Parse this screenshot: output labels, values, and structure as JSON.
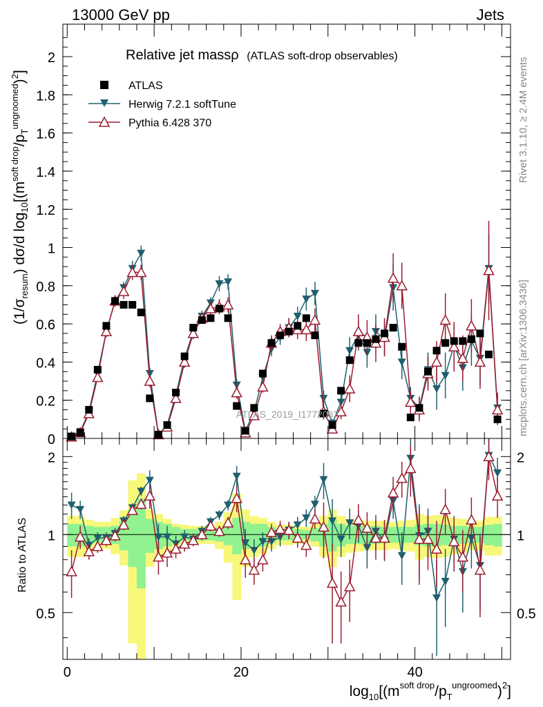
{
  "header": {
    "left": "13000 GeV pp",
    "right": "Jets"
  },
  "side_labels": {
    "rivet": "Rivet 3.1.10, ≥ 2.4M events",
    "mcplots": "mcplots.cern.ch [arXiv:1306.3436]"
  },
  "watermark": "ATLAS_2019_I1772062",
  "chart_data": {
    "type": "line",
    "title": "Relative jet massρ",
    "subtitle": "(ATLAS soft-drop observables)",
    "xlabel": "log10[(m^soft drop/pT^ungroomed)^2]",
    "xlabel_parts": {
      "log": "log",
      "sub": "10",
      "open": "[(m",
      "sup1": "soft drop",
      "mid": "/p",
      "sub2": "T",
      "sup2": "ungroomed",
      "close": ")",
      "pow": "2",
      "end": "]"
    },
    "ylabel_parts": {
      "a": "(1/σ",
      "b": "resum",
      "c": ") dσ/d log",
      "d": "10",
      "e": "[(m",
      "f": "soft drop",
      "g": "/p",
      "h": "T",
      "i": "ungroomed",
      "j": ")",
      "k": "2",
      "l": "]"
    },
    "ratio_ylabel": "Ratio to ATLAS",
    "xlim": [
      -0.5,
      51
    ],
    "ylim": [
      0,
      2.17
    ],
    "ratio_ylim": [
      0.33,
      2.35
    ],
    "x_ticks": [
      0,
      20,
      40
    ],
    "y_ticks": [
      0,
      0.2,
      0.4,
      0.6,
      0.8,
      1,
      1.2,
      1.4,
      1.6,
      1.8,
      2
    ],
    "y_tick_labels": [
      "0",
      "0.2",
      "0.4",
      "0.6",
      "0.8",
      "1",
      "1.2",
      "1.4",
      "1.6",
      "1.8",
      "2"
    ],
    "ratio_ticks": [
      0.5,
      1,
      2
    ],
    "ratio_tick_labels": [
      "0.5",
      "1",
      "2"
    ],
    "legend": [
      {
        "name": "ATLAS",
        "marker": "square",
        "color": "#000000"
      },
      {
        "name": "Herwig 7.2.1 softTune",
        "marker": "triangle-down",
        "color": "#1f5f6e"
      },
      {
        "name": "Pythia 6.428 370",
        "marker": "triangle-up-open",
        "color": "#9b1b30"
      }
    ],
    "x": [
      0.5,
      1.5,
      2.5,
      3.5,
      4.5,
      5.5,
      6.5,
      7.5,
      8.5,
      9.5,
      10.5,
      11.5,
      12.5,
      13.5,
      14.5,
      15.5,
      16.5,
      17.5,
      18.5,
      19.5,
      20.5,
      21.5,
      22.5,
      23.5,
      24.5,
      25.5,
      26.5,
      27.5,
      28.5,
      29.5,
      30.5,
      31.5,
      32.5,
      33.5,
      34.5,
      35.5,
      36.5,
      37.5,
      38.5,
      39.5,
      40.5,
      41.5,
      42.5,
      43.5,
      44.5,
      45.5,
      46.5,
      47.5,
      48.5,
      49.5
    ],
    "series": [
      {
        "name": "ATLAS",
        "values": [
          0.01,
          0.03,
          0.15,
          0.36,
          0.59,
          0.72,
          0.7,
          0.7,
          0.66,
          0.21,
          0.02,
          0.07,
          0.24,
          0.43,
          0.58,
          0.62,
          0.63,
          0.68,
          0.63,
          0.17,
          0.04,
          0.16,
          0.34,
          0.5,
          0.54,
          0.56,
          0.59,
          0.63,
          0.54,
          0.13,
          0.07,
          0.25,
          0.41,
          0.5,
          0.5,
          0.52,
          0.55,
          0.58,
          0.48,
          0.11,
          0.16,
          0.35,
          0.46,
          0.5,
          0.51,
          0.51,
          0.52,
          0.55,
          0.44,
          0.1
        ]
      },
      {
        "name": "Herwig 7.2.1 softTune",
        "values": [
          0.012,
          0.036,
          0.14,
          0.34,
          0.56,
          0.72,
          0.79,
          0.89,
          0.97,
          0.34,
          0.02,
          0.07,
          0.23,
          0.42,
          0.56,
          0.64,
          0.71,
          0.81,
          0.82,
          0.28,
          0.04,
          0.14,
          0.32,
          0.47,
          0.53,
          0.58,
          0.64,
          0.73,
          0.76,
          0.21,
          0.08,
          0.19,
          0.46,
          0.54,
          0.45,
          0.56,
          0.52,
          0.79,
          0.4,
          0.21,
          0.16,
          0.36,
          0.26,
          0.33,
          0.49,
          0.37,
          0.51,
          0.42,
          0.89,
          0.16
        ],
        "errors": [
          0.002,
          0.004,
          0.01,
          0.02,
          0.03,
          0.03,
          0.03,
          0.04,
          0.04,
          0.03,
          0.003,
          0.008,
          0.02,
          0.03,
          0.03,
          0.03,
          0.03,
          0.04,
          0.04,
          0.03,
          0.005,
          0.015,
          0.03,
          0.04,
          0.04,
          0.05,
          0.05,
          0.06,
          0.06,
          0.04,
          0.02,
          0.04,
          0.07,
          0.08,
          0.08,
          0.09,
          0.09,
          0.12,
          0.09,
          0.06,
          0.06,
          0.09,
          0.11,
          0.12,
          0.12,
          0.12,
          0.13,
          0.14,
          0.18,
          0.08
        ]
      },
      {
        "name": "Pythia 6.428 370",
        "values": [
          0.008,
          0.03,
          0.13,
          0.32,
          0.56,
          0.72,
          0.77,
          0.87,
          0.87,
          0.3,
          0.02,
          0.06,
          0.21,
          0.4,
          0.55,
          0.63,
          0.68,
          0.69,
          0.7,
          0.24,
          0.03,
          0.12,
          0.27,
          0.5,
          0.56,
          0.58,
          0.57,
          0.57,
          0.62,
          0.14,
          0.05,
          0.14,
          0.26,
          0.56,
          0.53,
          0.5,
          0.53,
          0.84,
          0.8,
          0.19,
          0.15,
          0.34,
          0.4,
          0.62,
          0.48,
          0.42,
          0.59,
          0.4,
          0.88,
          0.15
        ],
        "errors": [
          0.002,
          0.004,
          0.01,
          0.02,
          0.03,
          0.03,
          0.04,
          0.04,
          0.04,
          0.03,
          0.003,
          0.008,
          0.02,
          0.03,
          0.03,
          0.03,
          0.04,
          0.04,
          0.04,
          0.03,
          0.005,
          0.015,
          0.03,
          0.04,
          0.04,
          0.05,
          0.05,
          0.06,
          0.06,
          0.04,
          0.02,
          0.04,
          0.07,
          0.09,
          0.09,
          0.1,
          0.1,
          0.13,
          0.12,
          0.06,
          0.06,
          0.09,
          0.11,
          0.14,
          0.13,
          0.12,
          0.14,
          0.14,
          0.26,
          0.08
        ]
      }
    ],
    "ratio_series": [
      {
        "name": "Herwig 7.2.1 softTune",
        "values": [
          1.3,
          1.25,
          0.91,
          0.97,
          0.97,
          1.01,
          1.13,
          1.27,
          1.47,
          1.62,
          0.98,
          0.98,
          0.92,
          0.98,
          0.96,
          1.03,
          1.12,
          1.19,
          1.3,
          1.68,
          0.93,
          0.87,
          0.94,
          0.94,
          0.98,
          1.04,
          1.09,
          1.16,
          1.31,
          1.63,
          1.13,
          0.96,
          1.11,
          1.08,
          0.89,
          1.03,
          0.95,
          1.35,
          0.83,
          1.97,
          0.99,
          1.03,
          0.57,
          0.66,
          0.96,
          0.72,
          0.97,
          0.76,
          2.02,
          1.73
        ],
        "errors": [
          0.15,
          0.1,
          0.06,
          0.05,
          0.05,
          0.05,
          0.05,
          0.05,
          0.06,
          0.15,
          0.12,
          0.1,
          0.07,
          0.06,
          0.05,
          0.05,
          0.05,
          0.05,
          0.06,
          0.16,
          0.12,
          0.09,
          0.08,
          0.08,
          0.08,
          0.08,
          0.08,
          0.09,
          0.1,
          0.26,
          0.24,
          0.14,
          0.15,
          0.15,
          0.15,
          0.16,
          0.16,
          0.2,
          0.19,
          0.42,
          0.32,
          0.23,
          0.23,
          0.22,
          0.22,
          0.22,
          0.23,
          0.25,
          0.32,
          0.25
        ]
      },
      {
        "name": "Pythia 6.428 370",
        "values": [
          0.72,
          0.98,
          0.86,
          0.9,
          0.95,
          0.99,
          1.09,
          1.24,
          1.31,
          1.41,
          0.82,
          0.85,
          0.88,
          0.92,
          0.95,
          1.0,
          1.08,
          1.03,
          1.11,
          1.38,
          0.8,
          0.73,
          0.8,
          1.02,
          1.05,
          1.04,
          0.97,
          0.91,
          1.15,
          1.07,
          0.65,
          0.55,
          0.63,
          1.14,
          1.06,
          0.97,
          0.97,
          1.45,
          1.65,
          1.8,
          0.96,
          0.96,
          0.88,
          1.25,
          0.94,
          0.82,
          1.14,
          0.73,
          2.0,
          1.41
        ],
        "errors": [
          0.15,
          0.1,
          0.06,
          0.05,
          0.05,
          0.05,
          0.05,
          0.05,
          0.06,
          0.15,
          0.12,
          0.1,
          0.07,
          0.06,
          0.05,
          0.05,
          0.05,
          0.05,
          0.06,
          0.16,
          0.12,
          0.09,
          0.08,
          0.08,
          0.08,
          0.08,
          0.08,
          0.09,
          0.1,
          0.26,
          0.27,
          0.17,
          0.17,
          0.17,
          0.16,
          0.17,
          0.17,
          0.22,
          0.26,
          0.4,
          0.32,
          0.23,
          0.25,
          0.25,
          0.22,
          0.22,
          0.25,
          0.25,
          0.38,
          0.25
        ]
      }
    ],
    "uncertainty_band": {
      "green_halfwidth": [
        0.1,
        0.1,
        0.08,
        0.07,
        0.07,
        0.08,
        0.13,
        0.25,
        0.38,
        0.15,
        0.12,
        0.1,
        0.07,
        0.05,
        0.05,
        0.05,
        0.05,
        0.06,
        0.09,
        0.16,
        0.12,
        0.1,
        0.1,
        0.07,
        0.05,
        0.05,
        0.05,
        0.04,
        0.06,
        0.1,
        0.14,
        0.1,
        0.08,
        0.08,
        0.08,
        0.08,
        0.07,
        0.07,
        0.07,
        0.07,
        0.09,
        0.1,
        0.1,
        0.09,
        0.08,
        0.08,
        0.07,
        0.07,
        0.09,
        0.1
      ],
      "yellow_halfwidth": [
        0.18,
        0.18,
        0.14,
        0.12,
        0.12,
        0.16,
        0.24,
        0.62,
        0.72,
        0.25,
        0.2,
        0.15,
        0.1,
        0.09,
        0.08,
        0.08,
        0.08,
        0.12,
        0.22,
        0.44,
        0.25,
        0.18,
        0.16,
        0.12,
        0.09,
        0.09,
        0.08,
        0.07,
        0.1,
        0.18,
        0.25,
        0.18,
        0.15,
        0.14,
        0.13,
        0.13,
        0.13,
        0.12,
        0.13,
        0.14,
        0.2,
        0.18,
        0.19,
        0.18,
        0.16,
        0.15,
        0.13,
        0.13,
        0.17,
        0.17
      ]
    },
    "colors": {
      "herwig": "#1f5f6e",
      "pythia": "#9b1b30",
      "data": "#000000",
      "band_green": "#90f290",
      "band_yellow": "#f7f77a"
    }
  }
}
